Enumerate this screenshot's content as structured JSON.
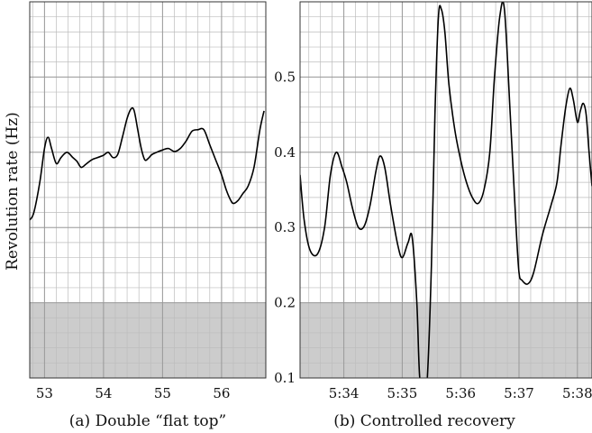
{
  "ylabel": "Revolution rate (Hz)",
  "colors": {
    "shade": "#cccccc",
    "grid": "#bdbdbd",
    "line": "#000000",
    "frame": "#333333"
  },
  "chart_data": [
    {
      "type": "line",
      "caption": "(a) Double “flat top”",
      "xlim": [
        52.75,
        56.75
      ],
      "ylim": [
        0.1,
        0.6
      ],
      "yticks": [],
      "xticks": [
        53,
        54,
        55,
        56
      ],
      "xtick_labels": [
        "53",
        "54",
        "55",
        "56"
      ],
      "shaded_band": [
        0.1,
        0.2
      ],
      "grid": true,
      "x": [
        52.75,
        52.82,
        52.92,
        53.0,
        53.06,
        53.12,
        53.2,
        53.28,
        53.38,
        53.48,
        53.55,
        53.62,
        53.7,
        53.8,
        53.9,
        54.0,
        54.08,
        54.16,
        54.24,
        54.32,
        54.4,
        54.47,
        54.52,
        54.58,
        54.64,
        54.7,
        54.76,
        54.82,
        54.9,
        55.0,
        55.1,
        55.2,
        55.3,
        55.4,
        55.5,
        55.6,
        55.7,
        55.8,
        55.9,
        56.0,
        56.08,
        56.15,
        56.2,
        56.28,
        56.36,
        56.45,
        56.55,
        56.65,
        56.72
      ],
      "y": [
        0.31,
        0.32,
        0.36,
        0.405,
        0.42,
        0.405,
        0.385,
        0.393,
        0.4,
        0.393,
        0.388,
        0.38,
        0.384,
        0.39,
        0.393,
        0.396,
        0.4,
        0.393,
        0.397,
        0.42,
        0.445,
        0.458,
        0.455,
        0.43,
        0.405,
        0.39,
        0.392,
        0.397,
        0.4,
        0.403,
        0.405,
        0.401,
        0.405,
        0.415,
        0.428,
        0.43,
        0.43,
        0.41,
        0.39,
        0.37,
        0.35,
        0.337,
        0.332,
        0.336,
        0.345,
        0.355,
        0.38,
        0.43,
        0.455
      ]
    },
    {
      "type": "line",
      "caption": "(b) Controlled recovery",
      "xlim": [
        "5:33.25",
        "5:38.25"
      ],
      "ylim": [
        0.1,
        0.6
      ],
      "yticks": [
        0.1,
        0.2,
        0.3,
        0.4,
        0.5
      ],
      "ytick_labels": [
        "0.1",
        "0.2",
        "0.3",
        "0.4",
        "0.5"
      ],
      "xticks": [
        "5:34",
        "5:35",
        "5:36",
        "5:37",
        "5:38"
      ],
      "xtick_labels": [
        "5:34",
        "5:35",
        "5:36",
        "5:37",
        "5:38"
      ],
      "shaded_band": [
        0.1,
        0.2
      ],
      "grid": true,
      "x": [
        "5:33.25",
        "5:33.32",
        "5:33.42",
        "5:33.55",
        "5:33.67",
        "5:33.77",
        "5:33.87",
        "5:33.97",
        "5:34.05",
        "5:34.15",
        "5:34.25",
        "5:34.35",
        "5:34.45",
        "5:34.55",
        "5:34.62",
        "5:34.7",
        "5:34.8",
        "5:34.92",
        "5:35.0",
        "5:35.1",
        "5:35.17",
        "5:35.25",
        "5:35.3",
        "5:35.38",
        "5:35.43",
        "5:35.5",
        "5:35.56",
        "5:35.62",
        "5:35.67",
        "5:35.73",
        "5:35.8",
        "5:35.9",
        "5:36.0",
        "5:36.1",
        "5:36.2",
        "5:36.3",
        "5:36.4",
        "5:36.5",
        "5:36.58",
        "5:36.67",
        "5:36.75",
        "5:36.85",
        "5:36.95",
        "5:37.0",
        "5:37.05",
        "5:37.15",
        "5:37.25",
        "5:37.4",
        "5:37.55",
        "5:37.65",
        "5:37.72",
        "5:37.8",
        "5:37.87",
        "5:37.93",
        "5:38.0",
        "5:38.05",
        "5:38.1",
        "5:38.15",
        "5:38.2",
        "5:38.25"
      ],
      "y": [
        0.37,
        0.31,
        0.27,
        0.265,
        0.3,
        0.37,
        0.4,
        0.38,
        0.36,
        0.325,
        0.3,
        0.302,
        0.33,
        0.375,
        0.395,
        0.38,
        0.33,
        0.278,
        0.26,
        0.28,
        0.287,
        0.2,
        0.1,
        0.08,
        0.1,
        0.25,
        0.45,
        0.58,
        0.59,
        0.56,
        0.49,
        0.43,
        0.39,
        0.36,
        0.34,
        0.332,
        0.35,
        0.4,
        0.5,
        0.58,
        0.59,
        0.45,
        0.3,
        0.24,
        0.23,
        0.225,
        0.24,
        0.29,
        0.33,
        0.36,
        0.41,
        0.46,
        0.485,
        0.47,
        0.44,
        0.455,
        0.465,
        0.45,
        0.4,
        0.355
      ]
    }
  ]
}
